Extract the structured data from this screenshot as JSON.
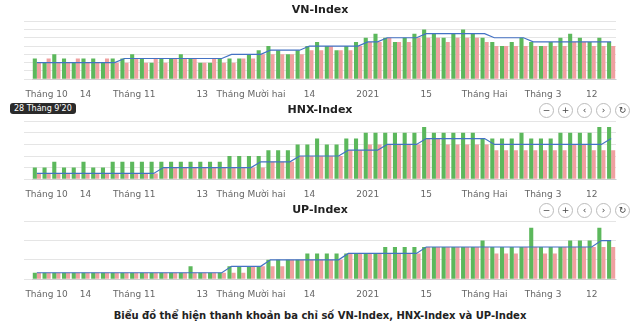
{
  "caption": "Biểu đồ thể hiện thanh khoản ba chỉ số VN-Index, HNX-Index và UP-Index",
  "chart_data": [
    {
      "type": "bar",
      "title": "VN-Index",
      "categories": [
        null,
        "Tháng 10",
        null,
        null,
        null,
        "14",
        null,
        null,
        null,
        null,
        "Tháng 11",
        null,
        null,
        null,
        null,
        null,
        null,
        "13",
        null,
        null,
        null,
        null,
        "Tháng Mười hai",
        null,
        null,
        null,
        null,
        null,
        "14",
        null,
        null,
        null,
        null,
        null,
        "2021",
        null,
        null,
        null,
        null,
        null,
        "15",
        null,
        null,
        null,
        null,
        null,
        "Tháng Hai",
        null,
        null,
        null,
        null,
        null,
        "Tháng 3",
        null,
        null,
        null,
        null,
        "12",
        null,
        null
      ],
      "series": [
        {
          "type": "bar",
          "color": "#5cb85c",
          "values": [
            5,
            4,
            6,
            5,
            4,
            5,
            5,
            4,
            5,
            5,
            6,
            5,
            4,
            5,
            5,
            6,
            5,
            4,
            4,
            5,
            5,
            5,
            6,
            7,
            8,
            7,
            6,
            7,
            8,
            9,
            8,
            7,
            8,
            9,
            10,
            11,
            10,
            9,
            10,
            11,
            12,
            11,
            10,
            11,
            12,
            11,
            10,
            9,
            8,
            9,
            10,
            9,
            8,
            9,
            10,
            11,
            10,
            9,
            10,
            9
          ]
        },
        {
          "type": "bar",
          "color": "#f0a0a0",
          "values": [
            4,
            5,
            4,
            4,
            5,
            4,
            4,
            5,
            4,
            4,
            5,
            4,
            5,
            4,
            5,
            5,
            5,
            4,
            5,
            4,
            4,
            5,
            5,
            6,
            6,
            6,
            6,
            6,
            7,
            7,
            8,
            7,
            7,
            8,
            9,
            9,
            10,
            9,
            9,
            10,
            10,
            10,
            9,
            10,
            10,
            10,
            9,
            8,
            8,
            8,
            8,
            8,
            8,
            8,
            8,
            9,
            9,
            8,
            8,
            8
          ]
        },
        {
          "type": "line",
          "color": "#4472c4",
          "values": [
            4,
            4,
            4,
            4,
            4,
            4,
            4,
            4,
            4,
            5,
            5,
            5,
            5,
            5,
            5,
            5,
            5,
            5,
            5,
            5,
            6,
            6,
            6,
            6,
            7,
            7,
            7,
            7,
            8,
            8,
            8,
            8,
            8,
            8,
            9,
            9,
            10,
            10,
            10,
            10,
            11,
            11,
            11,
            11,
            11,
            11,
            11,
            10,
            10,
            10,
            10,
            9,
            9,
            9,
            9,
            9,
            9,
            9,
            9,
            9
          ]
        }
      ],
      "ylim": [
        0,
        14
      ],
      "yticks": [
        0,
        2,
        4,
        6,
        8,
        10,
        12,
        14
      ],
      "grid": true,
      "tick_labels": "x"
    },
    {
      "type": "bar",
      "title": "HNX-Index",
      "categories": [
        null,
        "Tháng 10",
        null,
        null,
        null,
        "14",
        null,
        null,
        null,
        null,
        "Tháng 11",
        null,
        null,
        null,
        null,
        null,
        null,
        "13",
        null,
        null,
        null,
        null,
        "Tháng Mười hai",
        null,
        null,
        null,
        null,
        null,
        "14",
        null,
        null,
        null,
        null,
        null,
        "2021",
        null,
        null,
        null,
        null,
        null,
        "15",
        null,
        null,
        null,
        null,
        null,
        "Tháng Hai",
        null,
        null,
        null,
        null,
        null,
        "Tháng 3",
        null,
        null,
        null,
        null,
        "12",
        null,
        null
      ],
      "series": [
        {
          "type": "bar",
          "color": "#5cb85c",
          "values": [
            2,
            2,
            3,
            2,
            2,
            3,
            2,
            2,
            3,
            3,
            3,
            3,
            3,
            3,
            3,
            3,
            3,
            3,
            3,
            3,
            4,
            4,
            4,
            4,
            5,
            5,
            5,
            6,
            6,
            7,
            6,
            6,
            7,
            7,
            8,
            8,
            8,
            8,
            8,
            8,
            9,
            8,
            8,
            8,
            8,
            8,
            7,
            7,
            7,
            7,
            8,
            7,
            7,
            7,
            8,
            8,
            8,
            8,
            9,
            9
          ]
        },
        {
          "type": "bar",
          "color": "#f0a0a0",
          "values": [
            1,
            1,
            1,
            1,
            1,
            1,
            1,
            1,
            1,
            1,
            1,
            1,
            1,
            2,
            2,
            2,
            2,
            2,
            2,
            2,
            2,
            2,
            2,
            2,
            3,
            3,
            3,
            4,
            4,
            4,
            4,
            4,
            5,
            5,
            6,
            6,
            6,
            6,
            6,
            6,
            7,
            7,
            6,
            6,
            6,
            6,
            6,
            5,
            5,
            5,
            5,
            5,
            5,
            5,
            5,
            6,
            6,
            5,
            5,
            5
          ]
        },
        {
          "type": "line",
          "color": "#4472c4",
          "values": [
            1,
            1,
            1,
            1,
            1,
            1,
            1,
            1,
            1,
            1,
            1,
            1,
            1,
            2,
            2,
            2,
            2,
            2,
            2,
            2,
            2,
            2,
            2,
            3,
            3,
            3,
            3,
            4,
            4,
            4,
            4,
            4,
            5,
            5,
            5,
            5,
            6,
            6,
            6,
            6,
            7,
            7,
            7,
            7,
            7,
            7,
            7,
            6,
            6,
            6,
            6,
            6,
            6,
            6,
            6,
            6,
            6,
            6,
            6,
            7
          ]
        }
      ],
      "ylim": [
        0,
        10
      ],
      "yticks": [
        0,
        2,
        4,
        6,
        8,
        10
      ],
      "grid": true,
      "tick_labels": "x",
      "annotations": [
        "−",
        "+",
        "‹",
        "›",
        "↻",
        "28 Tháng 9'20"
      ]
    },
    {
      "type": "bar",
      "title": "UP-Index",
      "categories": [
        null,
        "Tháng 10",
        null,
        null,
        null,
        "14",
        null,
        null,
        null,
        null,
        "Tháng 11",
        null,
        null,
        null,
        null,
        null,
        null,
        "13",
        null,
        null,
        null,
        null,
        "Tháng Mười hai",
        null,
        null,
        null,
        null,
        null,
        "14",
        null,
        null,
        null,
        null,
        null,
        "2021",
        null,
        null,
        null,
        null,
        null,
        "15",
        null,
        null,
        null,
        null,
        null,
        "Tháng Hai",
        null,
        null,
        null,
        null,
        null,
        "Tháng 3",
        null,
        null,
        null,
        null,
        "12",
        null,
        null
      ],
      "series": [
        {
          "type": "bar",
          "color": "#5cb85c",
          "values": [
            1,
            1,
            1,
            1,
            1,
            1,
            1,
            1,
            1,
            1,
            1,
            1,
            1,
            1,
            1,
            1,
            2,
            1,
            1,
            1,
            2,
            2,
            2,
            2,
            3,
            3,
            3,
            3,
            4,
            4,
            4,
            4,
            4,
            4,
            4,
            4,
            5,
            5,
            5,
            5,
            5,
            5,
            5,
            5,
            5,
            5,
            6,
            5,
            5,
            5,
            5,
            8,
            5,
            5,
            5,
            6,
            6,
            6,
            8,
            6
          ]
        },
        {
          "type": "bar",
          "color": "#f0a0a0",
          "values": [
            1,
            1,
            1,
            1,
            1,
            1,
            1,
            1,
            1,
            1,
            1,
            1,
            1,
            1,
            1,
            1,
            1,
            1,
            1,
            1,
            1,
            1,
            2,
            2,
            2,
            2,
            3,
            3,
            3,
            3,
            3,
            3,
            4,
            4,
            4,
            4,
            4,
            4,
            4,
            4,
            5,
            5,
            5,
            5,
            5,
            5,
            5,
            4,
            4,
            4,
            5,
            5,
            4,
            4,
            5,
            5,
            5,
            5,
            5,
            5
          ]
        },
        {
          "type": "line",
          "color": "#4472c4",
          "values": [
            1,
            1,
            1,
            1,
            1,
            1,
            1,
            1,
            1,
            1,
            1,
            1,
            1,
            1,
            1,
            1,
            1,
            1,
            1,
            1,
            2,
            2,
            2,
            2,
            3,
            3,
            3,
            3,
            3,
            3,
            3,
            3,
            4,
            4,
            4,
            4,
            4,
            4,
            4,
            4,
            5,
            5,
            5,
            5,
            5,
            5,
            5,
            5,
            5,
            5,
            5,
            5,
            5,
            5,
            5,
            5,
            5,
            5,
            6,
            6
          ]
        }
      ],
      "ylim": [
        0,
        9
      ],
      "yticks": [
        0,
        3,
        6,
        9
      ],
      "grid": true,
      "tick_labels": "x",
      "annotations": [
        "−",
        "+",
        "‹",
        "›",
        "↻"
      ]
    }
  ]
}
